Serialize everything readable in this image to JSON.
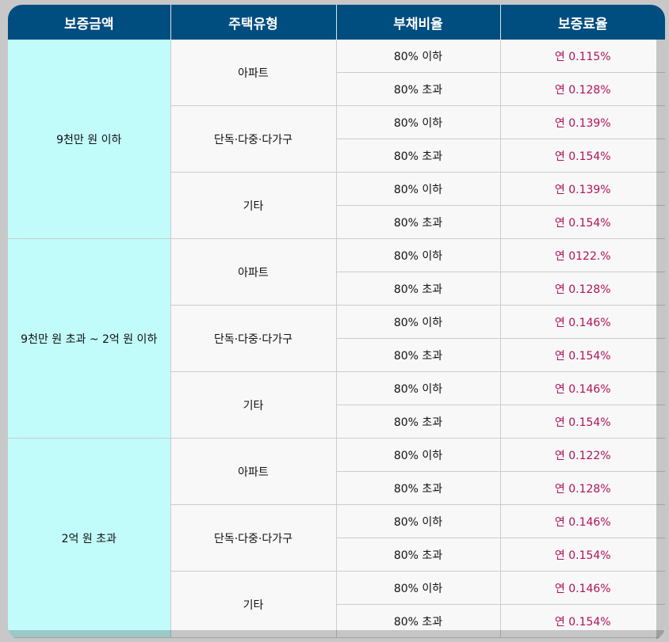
{
  "headers": [
    "보증금액",
    "주택유형",
    "부채비율",
    "보증료율"
  ],
  "groups": [
    {
      "amount": "9천만 원 이하",
      "types": [
        {
          "type": "아파트",
          "rows": [
            {
              "ratio": "80% 이하",
              "rate": "연 0.115%"
            },
            {
              "ratio": "80% 초과",
              "rate": "연 0.128%"
            }
          ]
        },
        {
          "type": "단독·다중·다가구",
          "rows": [
            {
              "ratio": "80% 이하",
              "rate": "연 0.139%"
            },
            {
              "ratio": "80% 초과",
              "rate": "연 0.154%"
            }
          ]
        },
        {
          "type": "기타",
          "rows": [
            {
              "ratio": "80% 이하",
              "rate": "연 0.139%"
            },
            {
              "ratio": "80% 초과",
              "rate": "연 0.154%"
            }
          ]
        }
      ]
    },
    {
      "amount": "9천만 원 초과 ~ 2억 원 이하",
      "types": [
        {
          "type": "아파트",
          "rows": [
            {
              "ratio": "80% 이하",
              "rate": "연 0122.%"
            },
            {
              "ratio": "80% 초과",
              "rate": "연 0.128%"
            }
          ]
        },
        {
          "type": "단독·다중·다가구",
          "rows": [
            {
              "ratio": "80% 이하",
              "rate": "연 0.146%"
            },
            {
              "ratio": "80% 초과",
              "rate": "연 0.154%"
            }
          ]
        },
        {
          "type": "기타",
          "rows": [
            {
              "ratio": "80% 이하",
              "rate": "연 0.146%"
            },
            {
              "ratio": "80% 초과",
              "rate": "연 0.154%"
            }
          ]
        }
      ]
    },
    {
      "amount": "2억 원 초과",
      "types": [
        {
          "type": "아파트",
          "rows": [
            {
              "ratio": "80% 이하",
              "rate": "연 0.122%"
            },
            {
              "ratio": "80% 초과",
              "rate": "연 0.128%"
            }
          ]
        },
        {
          "type": "단독·다중·다가구",
          "rows": [
            {
              "ratio": "80% 이하",
              "rate": "연 0.146%"
            },
            {
              "ratio": "80% 초과",
              "rate": "연 0.154%"
            }
          ]
        },
        {
          "type": "기타",
          "rows": [
            {
              "ratio": "80% 이하",
              "rate": "연 0.146%"
            },
            {
              "ratio": "80% 초과",
              "rate": "연 0.154%"
            }
          ]
        }
      ]
    }
  ]
}
